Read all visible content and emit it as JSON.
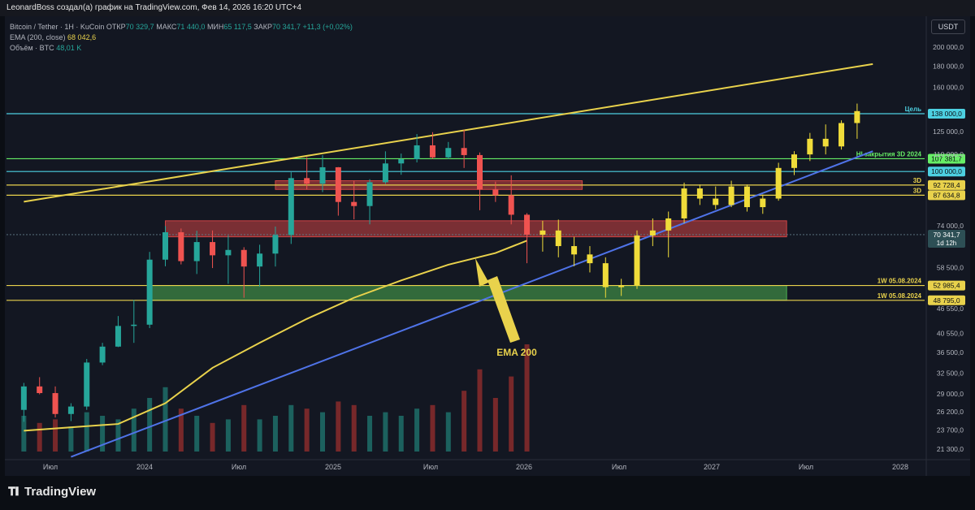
{
  "header": {
    "caption": "LeonardBoss создал(а) график на TradingView.com, Фев 14, 2026 16:20 UTC+4"
  },
  "legend": {
    "symbol": "Bitcoin / Tether · 1Н · KuCoin",
    "open_label": "ОТКР",
    "open": "70 329,7",
    "high_label": "МАКС",
    "high": "71 440,0",
    "low_label": "МИН",
    "low": "65 117,5",
    "close_label": "ЗАКР",
    "close": "70 341,7",
    "change": "+11,3 (+0,02%)",
    "ema_label": "EMA (200, close)",
    "ema_value": "68 042,6",
    "volume_label": "Объём · BTC",
    "volume_value": "48,01 K"
  },
  "currency_button": "USDT",
  "footer": {
    "brand": "TradingView",
    "logo_icon": "tradingview-logo-icon"
  },
  "chart_data": {
    "type": "candlestick",
    "y_scale": "log",
    "y_tick_labels": [
      "200 000,0",
      "180 000,0",
      "160 000,0",
      "125 000,0",
      "110 000,0",
      "74 000,0",
      "58 500,0",
      "46 550,0",
      "40 550,0",
      "36 500,0",
      "32 500,0",
      "29 000,0",
      "26 200,0",
      "23 700,0",
      "21 300,0"
    ],
    "y_tick_values": [
      200000,
      180000,
      160000,
      125000,
      110000,
      74000,
      58500,
      46550,
      40550,
      36500,
      32500,
      29000,
      26200,
      23700,
      21300
    ],
    "x_tick_labels": [
      "Июл",
      "2024",
      "Июл",
      "2025",
      "Июл",
      "2026",
      "Июл",
      "2027",
      "Июл",
      "2028"
    ],
    "price_lines": [
      {
        "value": 138000,
        "label": "138 000,0",
        "note": "Цель",
        "color": "#4dd0e1"
      },
      {
        "value": 107381.7,
        "label": "107 381,7",
        "note": "HI закрытия 3D 2024",
        "color": "#66ee66"
      },
      {
        "value": 100000,
        "label": "100 000,0",
        "note": "",
        "color": "#4dd0e1"
      },
      {
        "value": 92728.4,
        "label": "92 728,4",
        "note": "3D",
        "color": "#e9d24c"
      },
      {
        "value": 87634.8,
        "label": "87 634,8",
        "note": "3D",
        "color": "#e9d24c"
      },
      {
        "value": 52985.4,
        "label": "52 985,4",
        "note": "1W 05.08.2024",
        "color": "#e9d24c"
      },
      {
        "value": 48795.0,
        "label": "48 795,0",
        "note": "1W 05.08.2024",
        "color": "#e9d24c"
      }
    ],
    "last_price": {
      "value": 70341.7,
      "label": "70 341,7",
      "countdown": "1d 12h"
    },
    "annotations": [
      {
        "text": "EMA 200",
        "color": "#e9d24c"
      }
    ],
    "candles": [
      {
        "x": "2023-06",
        "o": 26500,
        "h": 30800,
        "l": 24800,
        "c": 30200
      },
      {
        "x": "2023-07",
        "o": 30200,
        "h": 31800,
        "l": 28900,
        "c": 29100
      },
      {
        "x": "2023-08",
        "o": 29100,
        "h": 30200,
        "l": 25400,
        "c": 25900
      },
      {
        "x": "2023-09",
        "o": 25900,
        "h": 27500,
        "l": 24900,
        "c": 27000
      },
      {
        "x": "2023-10",
        "o": 27000,
        "h": 35200,
        "l": 26500,
        "c": 34500
      },
      {
        "x": "2023-11",
        "o": 34500,
        "h": 38500,
        "l": 34000,
        "c": 37700
      },
      {
        "x": "2023-12",
        "o": 37700,
        "h": 44700,
        "l": 37600,
        "c": 42300
      },
      {
        "x": "2024-01",
        "o": 42300,
        "h": 48900,
        "l": 38500,
        "c": 42600
      },
      {
        "x": "2024-02",
        "o": 42600,
        "h": 63900,
        "l": 41800,
        "c": 61200
      },
      {
        "x": "2024-03",
        "o": 61200,
        "h": 73800,
        "l": 59000,
        "c": 71300
      },
      {
        "x": "2024-04",
        "o": 71300,
        "h": 72800,
        "l": 59600,
        "c": 60700
      },
      {
        "x": "2024-05",
        "o": 60700,
        "h": 71900,
        "l": 56500,
        "c": 67500
      },
      {
        "x": "2024-06",
        "o": 67500,
        "h": 72000,
        "l": 58400,
        "c": 62700
      },
      {
        "x": "2024-07",
        "o": 62700,
        "h": 70000,
        "l": 53500,
        "c": 64600
      },
      {
        "x": "2024-08",
        "o": 64600,
        "h": 65600,
        "l": 49500,
        "c": 58900
      },
      {
        "x": "2024-09",
        "o": 58900,
        "h": 66500,
        "l": 52600,
        "c": 63300
      },
      {
        "x": "2024-10",
        "o": 63300,
        "h": 73600,
        "l": 58900,
        "c": 70200
      },
      {
        "x": "2024-11",
        "o": 70200,
        "h": 99600,
        "l": 66800,
        "c": 96400
      },
      {
        "x": "2024-12",
        "o": 96400,
        "h": 108300,
        "l": 90500,
        "c": 93400
      },
      {
        "x": "2025-01",
        "o": 93400,
        "h": 109600,
        "l": 89200,
        "c": 102400
      },
      {
        "x": "2025-02",
        "o": 102400,
        "h": 102500,
        "l": 78200,
        "c": 84400
      },
      {
        "x": "2025-03",
        "o": 84400,
        "h": 95000,
        "l": 76600,
        "c": 82500
      },
      {
        "x": "2025-04",
        "o": 82500,
        "h": 95800,
        "l": 74500,
        "c": 94200
      },
      {
        "x": "2025-05",
        "o": 94200,
        "h": 111900,
        "l": 93300,
        "c": 104600
      },
      {
        "x": "2025-06",
        "o": 104600,
        "h": 110500,
        "l": 98200,
        "c": 107100
      },
      {
        "x": "2025-07",
        "o": 107100,
        "h": 123200,
        "l": 105200,
        "c": 115700
      },
      {
        "x": "2025-08",
        "o": 115700,
        "h": 124500,
        "l": 107300,
        "c": 108200
      },
      {
        "x": "2025-09",
        "o": 108200,
        "h": 117900,
        "l": 107200,
        "c": 114000
      },
      {
        "x": "2025-10",
        "o": 114000,
        "h": 126200,
        "l": 102000,
        "c": 109600
      },
      {
        "x": "2025-11",
        "o": 109600,
        "h": 111200,
        "l": 80600,
        "c": 90400
      },
      {
        "x": "2025-12",
        "o": 90400,
        "h": 94500,
        "l": 84400,
        "c": 87600
      },
      {
        "x": "2026-01",
        "o": 87600,
        "h": 97900,
        "l": 74500,
        "c": 78600
      },
      {
        "x": "2026-02",
        "o": 78600,
        "h": 79300,
        "l": 60000,
        "c": 70341.7
      }
    ],
    "projection": [
      {
        "x": "2026-03",
        "o": 70300,
        "h": 76000,
        "l": 64000,
        "c": 72000
      },
      {
        "x": "2026-04",
        "o": 72000,
        "h": 76500,
        "l": 62000,
        "c": 66000
      },
      {
        "x": "2026-05",
        "o": 66000,
        "h": 69500,
        "l": 59000,
        "c": 63000
      },
      {
        "x": "2026-06",
        "o": 63000,
        "h": 66000,
        "l": 57000,
        "c": 60000
      },
      {
        "x": "2026-07",
        "o": 60000,
        "h": 62000,
        "l": 49500,
        "c": 52500
      },
      {
        "x": "2026-08",
        "o": 52500,
        "h": 55000,
        "l": 50000,
        "c": 53000
      },
      {
        "x": "2026-09",
        "o": 53000,
        "h": 72000,
        "l": 52000,
        "c": 70000
      },
      {
        "x": "2026-10",
        "o": 70000,
        "h": 77000,
        "l": 66000,
        "c": 72000
      },
      {
        "x": "2026-11",
        "o": 72000,
        "h": 80000,
        "l": 62000,
        "c": 77000
      },
      {
        "x": "2026-12",
        "o": 77000,
        "h": 94000,
        "l": 75000,
        "c": 91000
      },
      {
        "x": "2027-01",
        "o": 91000,
        "h": 93000,
        "l": 83000,
        "c": 86000
      },
      {
        "x": "2027-02",
        "o": 86000,
        "h": 92000,
        "l": 81000,
        "c": 83000
      },
      {
        "x": "2027-03",
        "o": 83000,
        "h": 95000,
        "l": 82000,
        "c": 92000
      },
      {
        "x": "2027-04",
        "o": 92000,
        "h": 93000,
        "l": 80000,
        "c": 82000
      },
      {
        "x": "2027-05",
        "o": 82000,
        "h": 88000,
        "l": 79000,
        "c": 86000
      },
      {
        "x": "2027-06",
        "o": 86000,
        "h": 105000,
        "l": 85000,
        "c": 102000
      },
      {
        "x": "2027-07",
        "o": 102000,
        "h": 112000,
        "l": 98000,
        "c": 110000
      },
      {
        "x": "2027-08",
        "o": 110000,
        "h": 124000,
        "l": 106000,
        "c": 120000
      },
      {
        "x": "2027-09",
        "o": 120000,
        "h": 130000,
        "l": 110000,
        "c": 115000
      },
      {
        "x": "2027-10",
        "o": 115000,
        "h": 133000,
        "l": 113000,
        "c": 131000
      },
      {
        "x": "2027-11",
        "o": 131000,
        "h": 146000,
        "l": 120000,
        "c": 140000
      }
    ],
    "ema200": [
      {
        "x": "2023-06",
        "y": 23600
      },
      {
        "x": "2023-12",
        "y": 24500
      },
      {
        "x": "2024-03",
        "y": 27500
      },
      {
        "x": "2024-06",
        "y": 33500
      },
      {
        "x": "2024-09",
        "y": 38500
      },
      {
        "x": "2024-12",
        "y": 44000
      },
      {
        "x": "2025-03",
        "y": 49500
      },
      {
        "x": "2025-06",
        "y": 54500
      },
      {
        "x": "2025-09",
        "y": 59500
      },
      {
        "x": "2025-12",
        "y": 63500
      },
      {
        "x": "2026-02",
        "y": 68042.6
      }
    ],
    "trendlines": [
      {
        "from": {
          "x": "2023-06",
          "y": 84500
        },
        "to": {
          "x": "2027-12",
          "y": 182000
        },
        "color": "#e9d24c"
      },
      {
        "from": {
          "x": "2023-09",
          "y": 20400
        },
        "to": {
          "x": "2027-12",
          "y": 112000
        },
        "color": "#4f73e8"
      }
    ],
    "zones": [
      {
        "from": "2024-10",
        "to": "2026-05",
        "y0": 90500,
        "y1": 95000,
        "color": "#d04444"
      },
      {
        "from": "2024-03",
        "to": "2027-06",
        "y0": 69500,
        "y1": 76000,
        "color": "#d04444"
      },
      {
        "from": "2024-02",
        "to": "2027-06",
        "y0": 48795,
        "y1": 52985.4,
        "color": "#4caf50"
      }
    ],
    "volume": [
      2.0,
      1.6,
      1.8,
      1.4,
      2.2,
      2.0,
      1.8,
      2.4,
      3.0,
      3.6,
      2.4,
      2.0,
      1.6,
      1.8,
      2.6,
      1.8,
      2.0,
      2.6,
      2.4,
      2.2,
      2.8,
      2.6,
      2.0,
      2.2,
      2.0,
      2.4,
      2.6,
      2.2,
      3.4,
      4.6,
      3.0,
      4.2,
      6.0
    ]
  }
}
